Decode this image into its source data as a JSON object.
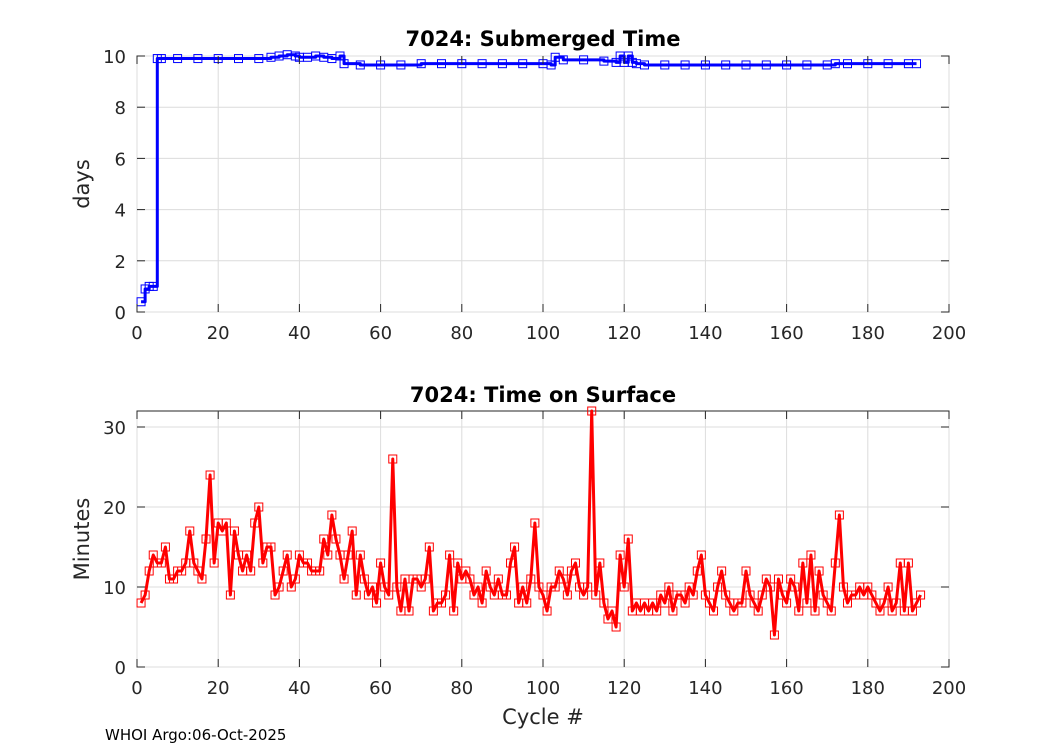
{
  "footer": {
    "text": "WHOI Argo:06-Oct-2025"
  },
  "chart_data": [
    {
      "type": "line",
      "title": "7024: Submerged Time",
      "xlabel": "",
      "ylabel": "days",
      "xlim": [
        0,
        200
      ],
      "ylim": [
        0,
        10
      ],
      "xticks": [
        0,
        20,
        40,
        60,
        80,
        100,
        120,
        140,
        160,
        180,
        200
      ],
      "yticks": [
        0,
        2,
        4,
        6,
        8,
        10
      ],
      "grid": true,
      "color": "#0000ff",
      "marker": "square",
      "line_style": "stairs",
      "series_points": [
        [
          1,
          0.4
        ],
        [
          2,
          0.9
        ],
        [
          3,
          1.0
        ],
        [
          4,
          1.0
        ],
        [
          5,
          9.9
        ],
        [
          6,
          9.9
        ],
        [
          10,
          9.9
        ],
        [
          15,
          9.9
        ],
        [
          20,
          9.9
        ],
        [
          25,
          9.9
        ],
        [
          30,
          9.9
        ],
        [
          33,
          9.95
        ],
        [
          35,
          10.0
        ],
        [
          37,
          10.05
        ],
        [
          39,
          10.0
        ],
        [
          40,
          9.95
        ],
        [
          42,
          9.95
        ],
        [
          44,
          10.0
        ],
        [
          46,
          9.95
        ],
        [
          48,
          9.9
        ],
        [
          50,
          10.0
        ],
        [
          51,
          9.7
        ],
        [
          55,
          9.65
        ],
        [
          60,
          9.65
        ],
        [
          65,
          9.65
        ],
        [
          70,
          9.7
        ],
        [
          75,
          9.7
        ],
        [
          80,
          9.7
        ],
        [
          85,
          9.7
        ],
        [
          90,
          9.7
        ],
        [
          95,
          9.7
        ],
        [
          100,
          9.7
        ],
        [
          102,
          9.65
        ],
        [
          103,
          9.95
        ],
        [
          105,
          9.85
        ],
        [
          110,
          9.85
        ],
        [
          115,
          9.8
        ],
        [
          118,
          9.75
        ],
        [
          119,
          10.0
        ],
        [
          120,
          9.75
        ],
        [
          121,
          10.0
        ],
        [
          122,
          9.75
        ],
        [
          123,
          9.7
        ],
        [
          125,
          9.65
        ],
        [
          130,
          9.65
        ],
        [
          135,
          9.65
        ],
        [
          140,
          9.65
        ],
        [
          145,
          9.65
        ],
        [
          150,
          9.65
        ],
        [
          155,
          9.65
        ],
        [
          160,
          9.65
        ],
        [
          165,
          9.65
        ],
        [
          170,
          9.65
        ],
        [
          172,
          9.7
        ],
        [
          175,
          9.7
        ],
        [
          180,
          9.7
        ],
        [
          185,
          9.7
        ],
        [
          190,
          9.7
        ],
        [
          192,
          9.7
        ]
      ]
    },
    {
      "type": "line",
      "title": "7024: Time on Surface",
      "xlabel": "Cycle #",
      "ylabel": "Minutes",
      "xlim": [
        0,
        200
      ],
      "ylim": [
        0,
        32
      ],
      "xticks": [
        0,
        20,
        40,
        60,
        80,
        100,
        120,
        140,
        160,
        180,
        200
      ],
      "yticks": [
        0,
        10,
        20,
        30
      ],
      "grid": true,
      "color": "#ff0000",
      "marker": "square",
      "line_style": "linear",
      "y": [
        8,
        9,
        12,
        14,
        13,
        13,
        15,
        11,
        11,
        12,
        12,
        13,
        17,
        13,
        12,
        11,
        16,
        24,
        13,
        18,
        17,
        18,
        9,
        17,
        14,
        12,
        14,
        12,
        18,
        20,
        13,
        15,
        15,
        9,
        10,
        12,
        14,
        10,
        11,
        14,
        13,
        13,
        12,
        12,
        12,
        16,
        14,
        19,
        16,
        14,
        11,
        14,
        17,
        9,
        14,
        11,
        9,
        10,
        8,
        13,
        10,
        9,
        26,
        10,
        7,
        11,
        7,
        11,
        11,
        10,
        11,
        15,
        7,
        8,
        8,
        9,
        14,
        7,
        13,
        11,
        12,
        11,
        9,
        10,
        8,
        12,
        10,
        9,
        11,
        9,
        9,
        13,
        15,
        8,
        10,
        8,
        11,
        18,
        10,
        9,
        7,
        10,
        10,
        12,
        11,
        9,
        12,
        13,
        10,
        9,
        10,
        32,
        9,
        13,
        8,
        6,
        7,
        5,
        14,
        10,
        16,
        7,
        8,
        7,
        8,
        7,
        8,
        7,
        9,
        8,
        10,
        7,
        9,
        9,
        8,
        10,
        9,
        12,
        14,
        9,
        8,
        7,
        10,
        12,
        9,
        8,
        7,
        8,
        8,
        12,
        9,
        8,
        7,
        9,
        11,
        10,
        4,
        11,
        9,
        8,
        11,
        10,
        7,
        13,
        8,
        14,
        7,
        12,
        9,
        8,
        7,
        13,
        19,
        10,
        8,
        9,
        9,
        10,
        9,
        10,
        9,
        8,
        7,
        8,
        10,
        7,
        8,
        13,
        7,
        13,
        7,
        8,
        9
      ]
    }
  ]
}
